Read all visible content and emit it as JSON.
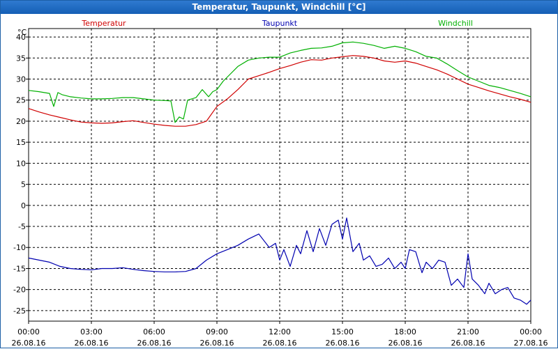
{
  "window": {
    "title": "Temperatur, Taupunkt, Windchill [°C]"
  },
  "chart_data": {
    "type": "line",
    "title": "Temperatur, Taupunkt, Windchill [°C]",
    "ylabel": "°C",
    "xlabel": "",
    "ylim": [
      -27.5,
      42.0
    ],
    "xlim": [
      0,
      24
    ],
    "grid": true,
    "y_ticks": [
      40,
      35,
      30,
      25,
      20,
      15,
      10,
      5,
      0,
      -5,
      -10,
      -15,
      -20,
      -25
    ],
    "x_ticks": [
      {
        "t": 0,
        "time": "00:00",
        "date": "26.08.16"
      },
      {
        "t": 3,
        "time": "03:00",
        "date": "26.08.16"
      },
      {
        "t": 6,
        "time": "06:00",
        "date": "26.08.16"
      },
      {
        "t": 9,
        "time": "09:00",
        "date": "26.08.16"
      },
      {
        "t": 12,
        "time": "12:00",
        "date": "26.08.16"
      },
      {
        "t": 15,
        "time": "15:00",
        "date": "26.08.16"
      },
      {
        "t": 18,
        "time": "18:00",
        "date": "26.08.16"
      },
      {
        "t": 21,
        "time": "21:00",
        "date": "26.08.16"
      },
      {
        "t": 24,
        "time": "00:00",
        "date": "27.08.16"
      }
    ],
    "series": [
      {
        "name": "Temperatur",
        "color": "#d00000",
        "legend_position": "top-left",
        "x": [
          0,
          0.5,
          1,
          1.5,
          2,
          2.5,
          3,
          3.5,
          4,
          4.5,
          5,
          5.5,
          6,
          6.5,
          7,
          7.5,
          8,
          8.5,
          9,
          9.5,
          10,
          10.5,
          11,
          11.5,
          12,
          12.5,
          13,
          13.5,
          14,
          14.5,
          15,
          15.5,
          16,
          16.5,
          17,
          17.5,
          18,
          18.5,
          19,
          19.5,
          20,
          20.5,
          21,
          21.5,
          22,
          22.5,
          23,
          23.5,
          24
        ],
        "values": [
          23.0,
          22.2,
          21.5,
          20.9,
          20.3,
          19.8,
          19.6,
          19.5,
          19.6,
          19.9,
          20.1,
          19.7,
          19.3,
          19.0,
          18.8,
          18.8,
          19.2,
          20.0,
          23.5,
          25.3,
          27.5,
          30.0,
          30.8,
          31.6,
          32.5,
          33.2,
          34.0,
          34.6,
          34.5,
          35.0,
          35.3,
          35.6,
          35.4,
          35.0,
          34.3,
          34.0,
          34.3,
          33.8,
          33.0,
          32.2,
          31.2,
          30.0,
          28.8,
          28.0,
          27.2,
          26.5,
          25.8,
          25.2,
          24.5
        ]
      },
      {
        "name": "Taupunkt",
        "color": "#0000b0",
        "legend_position": "top-center",
        "x": [
          0,
          0.5,
          1,
          1.5,
          2,
          2.5,
          3,
          3.5,
          4,
          4.5,
          5,
          5.5,
          6,
          6.5,
          7,
          7.5,
          8,
          8.5,
          9,
          9.5,
          10,
          10.5,
          11,
          11.5,
          11.8,
          12,
          12.2,
          12.5,
          12.8,
          13,
          13.3,
          13.6,
          13.9,
          14.2,
          14.5,
          14.8,
          15,
          15.2,
          15.5,
          15.8,
          16,
          16.3,
          16.6,
          16.9,
          17.2,
          17.5,
          17.8,
          18,
          18.2,
          18.5,
          18.8,
          19,
          19.3,
          19.6,
          19.9,
          20.2,
          20.5,
          20.8,
          21,
          21.2,
          21.5,
          21.8,
          22,
          22.3,
          22.6,
          22.9,
          23.2,
          23.5,
          23.8,
          24
        ],
        "values": [
          -12.5,
          -13.0,
          -13.5,
          -14.5,
          -15.0,
          -15.2,
          -15.3,
          -15.0,
          -15.0,
          -14.8,
          -15.2,
          -15.5,
          -15.7,
          -15.8,
          -15.8,
          -15.7,
          -15.0,
          -13.0,
          -11.5,
          -10.5,
          -9.5,
          -8.0,
          -6.8,
          -10.0,
          -9.0,
          -13.0,
          -10.5,
          -14.5,
          -9.5,
          -11.5,
          -6.0,
          -11.0,
          -5.5,
          -9.5,
          -4.5,
          -3.5,
          -8.0,
          -3.0,
          -11.0,
          -9.0,
          -13.0,
          -12.0,
          -14.5,
          -14.0,
          -12.5,
          -15.0,
          -13.5,
          -15.0,
          -10.5,
          -11.0,
          -16.0,
          -13.5,
          -15.0,
          -13.0,
          -13.5,
          -19.0,
          -17.5,
          -19.5,
          -11.5,
          -17.5,
          -19.0,
          -21.0,
          -18.5,
          -21.0,
          -20.0,
          -19.5,
          -22.0,
          -22.5,
          -23.5,
          -22.5
        ]
      },
      {
        "name": "Windchill",
        "color": "#00b000",
        "legend_position": "top-right",
        "x": [
          0,
          0.5,
          1,
          1.2,
          1.4,
          1.6,
          2,
          2.5,
          3,
          3.5,
          4,
          4.5,
          5,
          5.5,
          6,
          6.5,
          6.8,
          7.0,
          7.2,
          7.4,
          7.6,
          7.8,
          8,
          8.3,
          8.6,
          8.8,
          9,
          9.3,
          9.6,
          10,
          10.5,
          11,
          11.5,
          12,
          12.5,
          13,
          13.5,
          14,
          14.5,
          15,
          15.5,
          16,
          16.5,
          17,
          17.5,
          18,
          18.5,
          19,
          19.5,
          20,
          20.5,
          21,
          21.5,
          22,
          22.5,
          23,
          23.5,
          24
        ],
        "values": [
          27.3,
          27.0,
          26.6,
          23.5,
          26.8,
          26.3,
          25.8,
          25.5,
          25.3,
          25.3,
          25.4,
          25.6,
          25.6,
          25.3,
          25.0,
          24.9,
          24.8,
          19.7,
          21.0,
          20.5,
          25.0,
          25.3,
          25.6,
          27.5,
          25.8,
          27.0,
          27.5,
          29.5,
          31.0,
          33.0,
          34.5,
          35.0,
          35.2,
          35.2,
          36.2,
          36.8,
          37.3,
          37.4,
          37.8,
          38.6,
          38.8,
          38.5,
          38.0,
          37.3,
          37.8,
          37.3,
          36.5,
          35.4,
          35.0,
          33.6,
          32.0,
          30.5,
          29.5,
          28.5,
          28.0,
          27.3,
          26.6,
          25.8
        ]
      }
    ]
  }
}
